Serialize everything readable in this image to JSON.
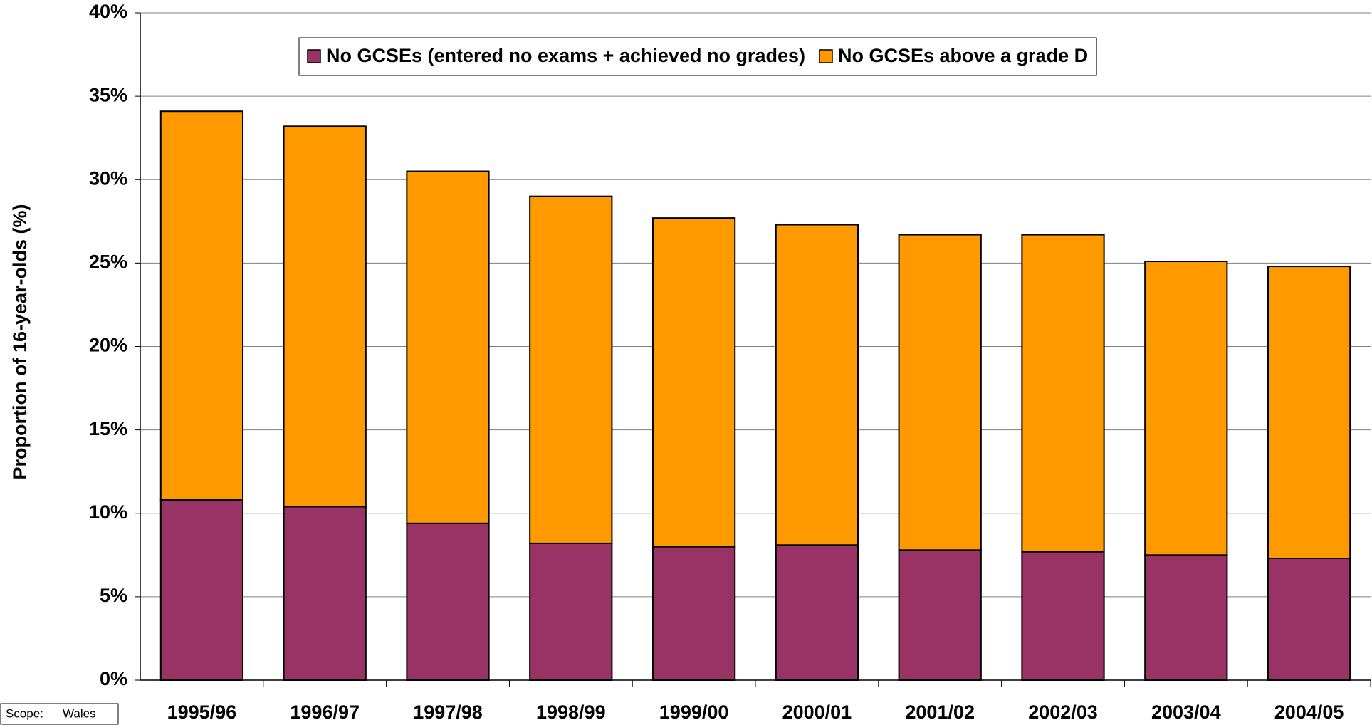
{
  "chart_data": {
    "type": "stacked_bar",
    "y_axis_label": "Proportion of 16-year-olds (%)",
    "scope_label": "Scope:",
    "scope_value": "Wales",
    "categories": [
      "1995/96",
      "1996/97",
      "1997/98",
      "1998/99",
      "1999/00",
      "2000/01",
      "2001/02",
      "2002/03",
      "2003/04",
      "2004/05"
    ],
    "series": [
      {
        "name": "No GCSEs (entered no exams + achieved no grades)",
        "color": "#993366",
        "values": [
          10.8,
          10.4,
          9.4,
          8.2,
          8.0,
          8.1,
          7.8,
          7.7,
          7.5,
          7.3
        ]
      },
      {
        "name": "No GCSEs above a grade D",
        "color": "#ff9900",
        "values": [
          23.3,
          22.8,
          21.1,
          20.8,
          19.7,
          19.2,
          18.9,
          19.0,
          17.6,
          17.5
        ]
      }
    ],
    "ylim": [
      0,
      40
    ],
    "yticks": [
      {
        "value": 0,
        "label": "0%"
      },
      {
        "value": 5,
        "label": "5%"
      },
      {
        "value": 10,
        "label": "10%"
      },
      {
        "value": 15,
        "label": "15%"
      },
      {
        "value": 20,
        "label": "20%"
      },
      {
        "value": 25,
        "label": "25%"
      },
      {
        "value": 30,
        "label": "30%"
      },
      {
        "value": 35,
        "label": "35%"
      },
      {
        "value": 40,
        "label": "40%"
      }
    ],
    "grid": true,
    "legend": "top"
  }
}
